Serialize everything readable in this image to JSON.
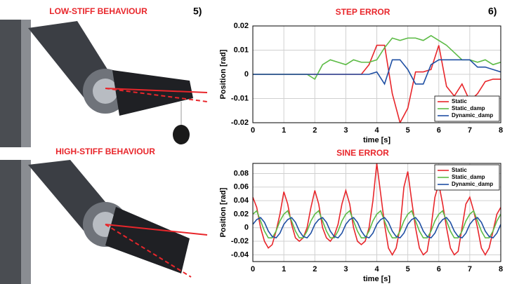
{
  "photo_captions": [
    "LOW-STIFF BEHAVIOUR",
    "HIGH-STIFF BEHAVIOUR"
  ],
  "figure_labels": [
    "5)",
    "6)"
  ],
  "chart_data": [
    {
      "type": "line",
      "title": "STEP ERROR",
      "x_label": "time [s]",
      "y_label": "Position [rad]",
      "x": [
        0,
        0.25,
        0.5,
        0.75,
        1,
        1.25,
        1.5,
        1.75,
        2,
        2.25,
        2.5,
        2.75,
        3,
        3.25,
        3.5,
        3.75,
        4,
        4.25,
        4.5,
        4.75,
        5,
        5.25,
        5.5,
        5.75,
        6,
        6.25,
        6.5,
        6.75,
        7,
        7.25,
        7.5,
        7.75,
        8
      ],
      "series": [
        {
          "name": "Static",
          "color": "#e8262b",
          "values": [
            0,
            0,
            0,
            0,
            0,
            0,
            0,
            0,
            0,
            0,
            0,
            0,
            0,
            0,
            0,
            0.004,
            0.012,
            0.012,
            -0.008,
            -0.02,
            -0.014,
            0.001,
            0.001,
            0.002,
            0.012,
            -0.005,
            -0.009,
            -0.004,
            -0.011,
            -0.008,
            -0.003,
            -0.002,
            -0.002
          ]
        },
        {
          "name": "Static_damp",
          "color": "#5dbb46",
          "values": [
            0,
            0,
            0,
            0,
            0,
            0,
            0,
            0,
            -0.002,
            0.004,
            0.006,
            0.005,
            0.004,
            0.006,
            0.005,
            0.005,
            0.006,
            0.011,
            0.015,
            0.014,
            0.015,
            0.015,
            0.014,
            0.016,
            0.014,
            0.012,
            0.009,
            0.006,
            0.006,
            0.005,
            0.006,
            0.004,
            0.005
          ]
        },
        {
          "name": "Dynamic_damp",
          "color": "#1f4fa3",
          "values": [
            0,
            0,
            0,
            0,
            0,
            0,
            0,
            0,
            0,
            0,
            0,
            0,
            0,
            0,
            0,
            0,
            0.001,
            -0.004,
            0.006,
            0.006,
            0.002,
            -0.004,
            -0.004,
            0.004,
            0.006,
            0.006,
            0.006,
            0.006,
            0.006,
            0.003,
            0.003,
            0.002,
            0.001
          ]
        }
      ],
      "xlim": [
        0,
        8
      ],
      "xticks": [
        0,
        1,
        2,
        3,
        4,
        5,
        6,
        7,
        8
      ],
      "ylim": [
        -0.02,
        0.02
      ],
      "yticks": [
        -0.02,
        -0.01,
        0,
        0.01,
        0.02
      ],
      "grid": true,
      "legend": "lower right"
    },
    {
      "type": "line",
      "title": "SINE ERROR",
      "x_label": "time [s]",
      "y_label": "Position [rad]",
      "x": [
        0,
        0.125,
        0.25,
        0.375,
        0.5,
        0.625,
        0.75,
        0.875,
        1,
        1.125,
        1.25,
        1.375,
        1.5,
        1.625,
        1.75,
        1.875,
        2,
        2.125,
        2.25,
        2.375,
        2.5,
        2.625,
        2.75,
        2.875,
        3,
        3.125,
        3.25,
        3.375,
        3.5,
        3.625,
        3.75,
        3.875,
        4,
        4.125,
        4.25,
        4.375,
        4.5,
        4.625,
        4.75,
        4.875,
        5,
        5.125,
        5.25,
        5.375,
        5.5,
        5.625,
        5.75,
        5.875,
        6,
        6.125,
        6.25,
        6.375,
        6.5,
        6.625,
        6.75,
        6.875,
        7,
        7.125,
        7.25,
        7.375,
        7.5,
        7.625,
        7.75,
        7.875,
        8
      ],
      "series": [
        {
          "name": "Static",
          "color": "#e8262b",
          "values": [
            0.045,
            0.03,
            0,
            -0.02,
            -0.03,
            -0.025,
            -0.005,
            0.02,
            0.053,
            0.035,
            0.005,
            -0.015,
            -0.02,
            -0.015,
            0,
            0.03,
            0.055,
            0.035,
            0,
            -0.015,
            -0.02,
            -0.012,
            0.005,
            0.035,
            0.055,
            0.035,
            0,
            -0.02,
            -0.025,
            -0.02,
            0,
            0.04,
            0.095,
            0.05,
            0.005,
            -0.03,
            -0.04,
            -0.03,
            0,
            0.06,
            0.083,
            0.04,
            0,
            -0.03,
            -0.04,
            -0.035,
            0,
            0.045,
            0.065,
            0.035,
            0,
            -0.03,
            -0.04,
            -0.035,
            0,
            0.035,
            0.045,
            0.025,
            0,
            -0.03,
            -0.04,
            -0.03,
            -0.005,
            0.02,
            0.03
          ]
        },
        {
          "name": "Static_damp",
          "color": "#5dbb46",
          "values": [
            0.02,
            0.025,
            0.01,
            -0.005,
            -0.015,
            -0.015,
            -0.005,
            0.01,
            0.02,
            0.025,
            0.01,
            -0.005,
            -0.015,
            -0.015,
            -0.005,
            0.01,
            0.02,
            0.025,
            0.01,
            -0.005,
            -0.015,
            -0.015,
            -0.005,
            0.01,
            0.02,
            0.025,
            0.01,
            -0.005,
            -0.015,
            -0.015,
            -0.005,
            0.01,
            0.02,
            0.025,
            0.01,
            -0.005,
            -0.015,
            -0.015,
            -0.005,
            0.01,
            0.02,
            0.025,
            0.01,
            -0.005,
            -0.015,
            -0.015,
            -0.005,
            0.01,
            0.02,
            0.025,
            0.01,
            -0.005,
            -0.015,
            -0.015,
            -0.005,
            0.01,
            0.02,
            0.025,
            0.01,
            -0.005,
            -0.015,
            -0.015,
            -0.005,
            0.01,
            0.02
          ]
        },
        {
          "name": "Dynamic_damp",
          "color": "#1f4fa3",
          "values": [
            0.005,
            0.012,
            0.015,
            0.008,
            -0.005,
            -0.013,
            -0.015,
            -0.008,
            0.005,
            0.012,
            0.015,
            0.008,
            -0.005,
            -0.013,
            -0.015,
            -0.008,
            0.005,
            0.012,
            0.015,
            0.008,
            -0.005,
            -0.013,
            -0.015,
            -0.008,
            0.005,
            0.012,
            0.015,
            0.008,
            -0.005,
            -0.013,
            -0.015,
            -0.008,
            0.005,
            0.012,
            0.015,
            0.008,
            -0.005,
            -0.013,
            -0.015,
            -0.008,
            0.005,
            0.012,
            0.015,
            0.008,
            -0.005,
            -0.013,
            -0.015,
            -0.008,
            0.005,
            0.012,
            0.015,
            0.008,
            -0.005,
            -0.013,
            -0.015,
            -0.008,
            0.005,
            0.012,
            0.015,
            0.008,
            -0.005,
            -0.013,
            -0.015,
            -0.008,
            0.005
          ]
        }
      ],
      "xlim": [
        0,
        8
      ],
      "xticks": [
        0,
        1,
        2,
        3,
        4,
        5,
        6,
        7,
        8
      ],
      "ylim": [
        -0.05,
        0.095
      ],
      "yticks": [
        -0.04,
        -0.02,
        0,
        0.02,
        0.04,
        0.06,
        0.08
      ],
      "grid": true,
      "legend": "upper right"
    }
  ]
}
